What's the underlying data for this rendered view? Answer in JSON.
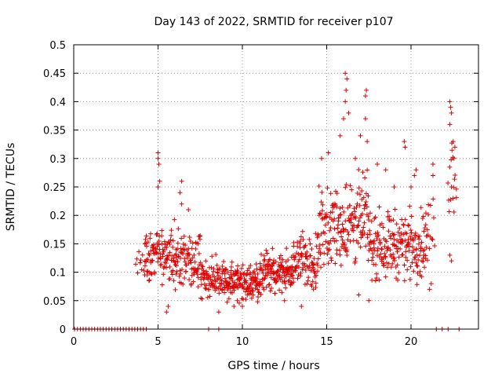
{
  "chart_data": {
    "type": "scatter",
    "title": "Day 143 of 2022, SRMTID for receiver p107",
    "xlabel": "GPS time / hours",
    "ylabel": "SRMTID / TECUs",
    "xlim": [
      0,
      24
    ],
    "ylim": [
      0,
      0.5
    ],
    "xticks": [
      0,
      5,
      10,
      15,
      20
    ],
    "yticks": [
      0,
      0.05,
      0.1,
      0.15,
      0.2,
      0.25,
      0.3,
      0.35,
      0.4,
      0.45,
      0.5
    ],
    "ytick_labels": [
      "0",
      "0.05",
      "0.1",
      "0.15",
      "0.2",
      "0.25",
      "0.3",
      "0.35",
      "0.4",
      "0.45",
      "0.5"
    ],
    "grid": true,
    "marker": "+",
    "color": "#e00000",
    "series": [
      {
        "name": "SRMTID",
        "segments": [
          {
            "t": [
              0.05,
              4.3
            ],
            "level": 0.0,
            "spread": 0.0,
            "density": 6
          },
          {
            "t": [
              3.7,
              4.2
            ],
            "level": 0.12,
            "spread": 0.03,
            "density": 20
          },
          {
            "t": [
              4.2,
              6.0
            ],
            "level": 0.13,
            "spread": 0.05,
            "density": 60
          },
          {
            "t": [
              6.0,
              7.5
            ],
            "level": 0.12,
            "spread": 0.05,
            "density": 60
          },
          {
            "t": [
              7.5,
              9.0
            ],
            "level": 0.09,
            "spread": 0.04,
            "density": 60
          },
          {
            "t": [
              8.0,
              8.6
            ],
            "level": 0.0,
            "spread": 0.0,
            "density": 4
          },
          {
            "t": [
              9.0,
              11.0
            ],
            "level": 0.085,
            "spread": 0.035,
            "density": 70
          },
          {
            "t": [
              11.0,
              13.0
            ],
            "level": 0.1,
            "spread": 0.035,
            "density": 70
          },
          {
            "t": [
              13.0,
              14.5
            ],
            "level": 0.12,
            "spread": 0.05,
            "density": 60
          },
          {
            "t": [
              14.5,
              16.0
            ],
            "level": 0.18,
            "spread": 0.07,
            "density": 60
          },
          {
            "t": [
              16.0,
              17.5
            ],
            "level": 0.19,
            "spread": 0.08,
            "density": 60
          },
          {
            "t": [
              17.5,
              19.0
            ],
            "level": 0.15,
            "spread": 0.06,
            "density": 60
          },
          {
            "t": [
              19.0,
              21.0
            ],
            "level": 0.15,
            "spread": 0.06,
            "density": 60
          },
          {
            "t": [
              21.0,
              21.4
            ],
            "level": 0.18,
            "spread": 0.06,
            "density": 25
          },
          {
            "t": [
              21.5,
              22.2
            ],
            "level": 0.0,
            "spread": 0.0,
            "density": 4
          },
          {
            "t": [
              22.2,
              22.7
            ],
            "level": 0.28,
            "spread": 0.08,
            "density": 30
          },
          {
            "t": [
              22.8,
              22.9
            ],
            "level": 0.0,
            "spread": 0.0,
            "density": 2
          }
        ],
        "peaks": [
          [
            5.0,
            0.31
          ],
          [
            5.0,
            0.3
          ],
          [
            5.05,
            0.29
          ],
          [
            5.0,
            0.25
          ],
          [
            5.1,
            0.26
          ],
          [
            6.4,
            0.26
          ],
          [
            6.3,
            0.24
          ],
          [
            6.4,
            0.22
          ],
          [
            6.8,
            0.21
          ],
          [
            5.5,
            0.03
          ],
          [
            5.6,
            0.04
          ],
          [
            8.6,
            0.03
          ],
          [
            9.5,
            0.04
          ],
          [
            14.7,
            0.3
          ],
          [
            15.1,
            0.31
          ],
          [
            15.8,
            0.34
          ],
          [
            16.0,
            0.37
          ],
          [
            16.1,
            0.45
          ],
          [
            16.2,
            0.44
          ],
          [
            16.15,
            0.42
          ],
          [
            16.1,
            0.4
          ],
          [
            16.3,
            0.38
          ],
          [
            16.7,
            0.3
          ],
          [
            17.0,
            0.34
          ],
          [
            17.3,
            0.41
          ],
          [
            17.35,
            0.42
          ],
          [
            17.3,
            0.37
          ],
          [
            17.4,
            0.33
          ],
          [
            18.0,
            0.29
          ],
          [
            18.5,
            0.28
          ],
          [
            19.0,
            0.25
          ],
          [
            19.6,
            0.33
          ],
          [
            19.65,
            0.32
          ],
          [
            20.0,
            0.25
          ],
          [
            20.2,
            0.27
          ],
          [
            20.3,
            0.28
          ],
          [
            21.3,
            0.29
          ],
          [
            21.3,
            0.27
          ],
          [
            22.3,
            0.4
          ],
          [
            22.35,
            0.39
          ],
          [
            22.4,
            0.38
          ],
          [
            22.3,
            0.36
          ],
          [
            22.5,
            0.33
          ],
          [
            22.6,
            0.32
          ],
          [
            22.55,
            0.3
          ],
          [
            22.4,
            0.25
          ],
          [
            22.5,
            0.23
          ],
          [
            22.3,
            0.13
          ],
          [
            22.4,
            0.12
          ],
          [
            21.2,
            0.08
          ],
          [
            21.1,
            0.07
          ],
          [
            16.9,
            0.06
          ],
          [
            17.5,
            0.05
          ],
          [
            12.5,
            0.05
          ],
          [
            13.5,
            0.04
          ],
          [
            10.0,
            0.04
          ],
          [
            9.7,
            0.05
          ]
        ]
      }
    ]
  }
}
